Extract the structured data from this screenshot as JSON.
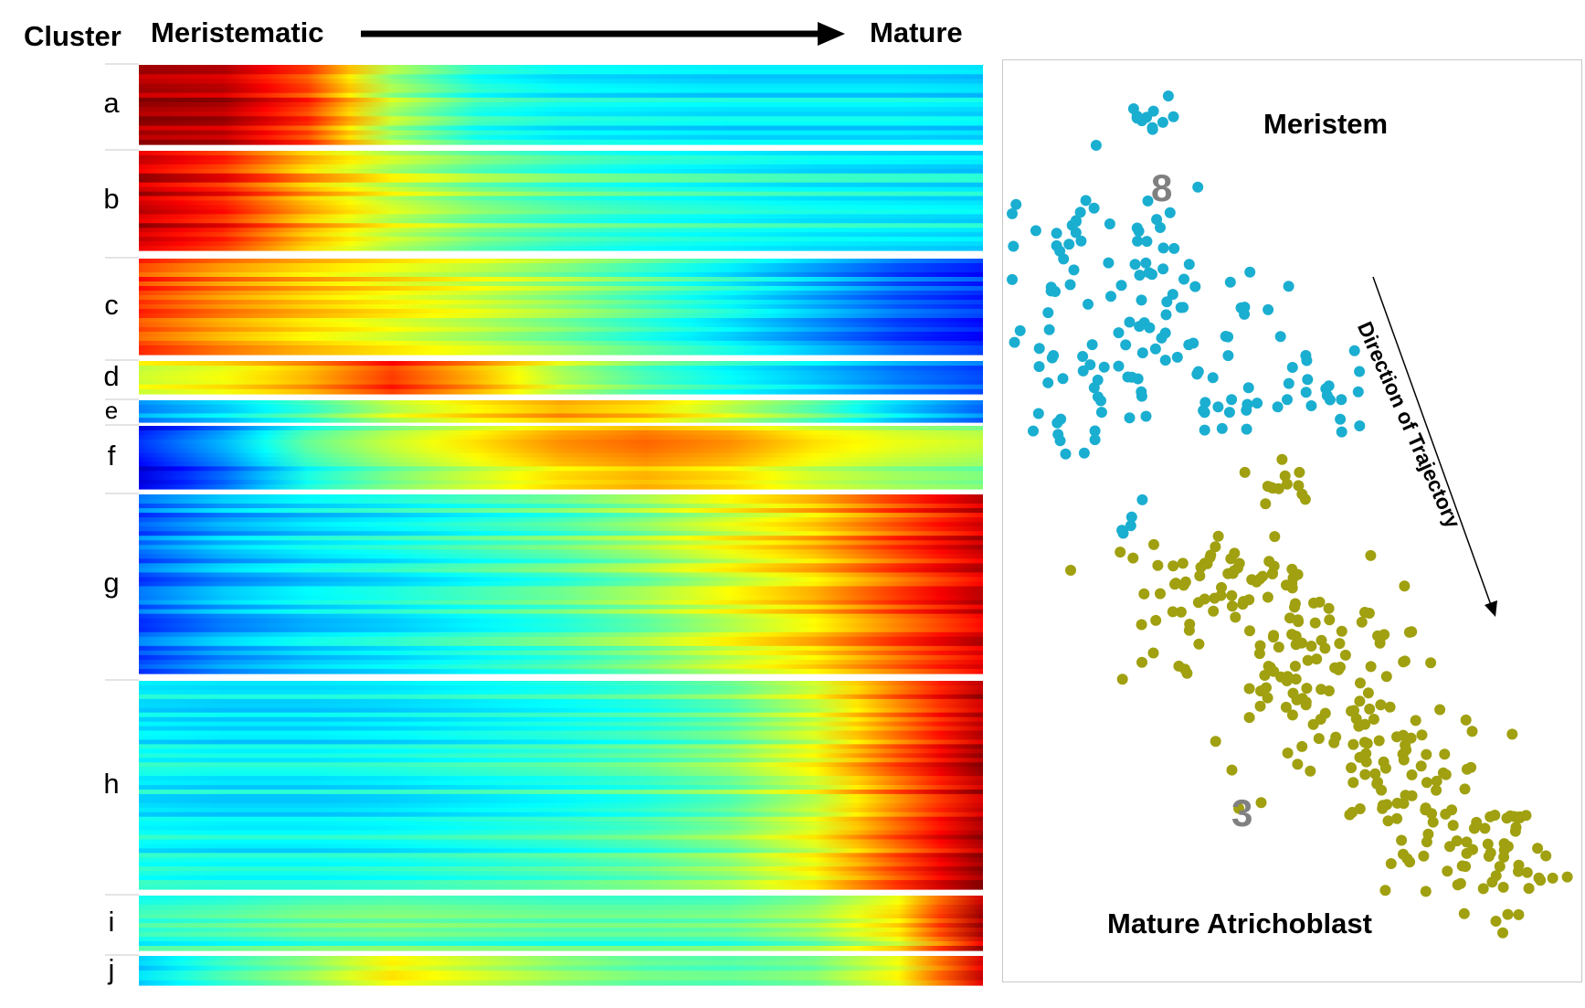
{
  "header": {
    "cluster": "Cluster",
    "start": "Meristematic",
    "end": "Mature"
  },
  "chart_data": [
    {
      "type": "heatmap",
      "title": "",
      "xlabel": "",
      "ylabel": "Cluster",
      "x_direction": [
        "Meristematic",
        "Mature"
      ],
      "colormap": "jet",
      "clusters": [
        {
          "label": "a",
          "profile": [
            0.97,
            0.95,
            0.82,
            0.55,
            0.42,
            0.38,
            0.37,
            0.36,
            0.36,
            0.36,
            0.35
          ]
        },
        {
          "label": "b",
          "profile": [
            0.93,
            0.85,
            0.7,
            0.58,
            0.5,
            0.45,
            0.42,
            0.4,
            0.38,
            0.37,
            0.36
          ]
        },
        {
          "label": "c",
          "profile": [
            0.82,
            0.74,
            0.68,
            0.63,
            0.58,
            0.52,
            0.45,
            0.38,
            0.3,
            0.22,
            0.17
          ]
        },
        {
          "label": "d",
          "profile": [
            0.58,
            0.62,
            0.7,
            0.82,
            0.7,
            0.55,
            0.45,
            0.38,
            0.32,
            0.25,
            0.2
          ]
        },
        {
          "label": "e",
          "profile": [
            0.28,
            0.35,
            0.45,
            0.58,
            0.66,
            0.72,
            0.68,
            0.58,
            0.48,
            0.35,
            0.25
          ]
        },
        {
          "label": "f",
          "profile": [
            0.12,
            0.25,
            0.42,
            0.52,
            0.6,
            0.68,
            0.72,
            0.68,
            0.6,
            0.55,
            0.52
          ]
        },
        {
          "label": "g",
          "profile": [
            0.22,
            0.3,
            0.35,
            0.38,
            0.42,
            0.46,
            0.52,
            0.6,
            0.68,
            0.8,
            0.92
          ]
        },
        {
          "label": "h",
          "profile": [
            0.38,
            0.37,
            0.37,
            0.38,
            0.4,
            0.42,
            0.45,
            0.5,
            0.6,
            0.78,
            0.96
          ]
        },
        {
          "label": "i",
          "profile": [
            0.4,
            0.42,
            0.45,
            0.46,
            0.45,
            0.44,
            0.44,
            0.45,
            0.5,
            0.62,
            0.93
          ]
        },
        {
          "label": "j",
          "profile": [
            0.32,
            0.42,
            0.5,
            0.62,
            0.56,
            0.5,
            0.46,
            0.45,
            0.48,
            0.6,
            0.9
          ]
        }
      ]
    },
    {
      "type": "scatter",
      "title": "",
      "annotations": [
        "Meristem",
        "Mature Atrichoblast",
        "Direction of Trajectory"
      ],
      "series": [
        {
          "name": "8",
          "color": "#1aaed0",
          "n_points": 170
        },
        {
          "name": "3",
          "color": "#a0a010",
          "n_points": 300
        }
      ]
    }
  ],
  "scatter": {
    "top_label": "Meristem",
    "bottom_label": "Mature Atrichoblast",
    "cluster_8": "8",
    "cluster_3": "3",
    "arrow_label": "Direction of Trajectory"
  }
}
